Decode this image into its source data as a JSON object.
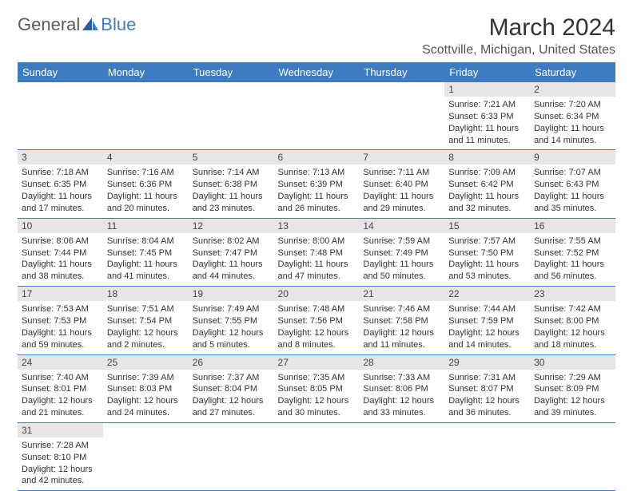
{
  "logo": {
    "text1": "General",
    "text2": "Blue"
  },
  "title": "March 2024",
  "location": "Scottville, Michigan, United States",
  "colors": {
    "header_bg": "#3d7cc0",
    "daynum_bg": "#e6e6e6",
    "border": "#3d7cc0"
  },
  "day_headers": [
    "Sunday",
    "Monday",
    "Tuesday",
    "Wednesday",
    "Thursday",
    "Friday",
    "Saturday"
  ],
  "weeks": [
    [
      null,
      null,
      null,
      null,
      null,
      {
        "n": "1",
        "sr": "7:21 AM",
        "ss": "6:33 PM",
        "dl": "11 hours and 11 minutes."
      },
      {
        "n": "2",
        "sr": "7:20 AM",
        "ss": "6:34 PM",
        "dl": "11 hours and 14 minutes."
      }
    ],
    [
      {
        "n": "3",
        "sr": "7:18 AM",
        "ss": "6:35 PM",
        "dl": "11 hours and 17 minutes."
      },
      {
        "n": "4",
        "sr": "7:16 AM",
        "ss": "6:36 PM",
        "dl": "11 hours and 20 minutes."
      },
      {
        "n": "5",
        "sr": "7:14 AM",
        "ss": "6:38 PM",
        "dl": "11 hours and 23 minutes."
      },
      {
        "n": "6",
        "sr": "7:13 AM",
        "ss": "6:39 PM",
        "dl": "11 hours and 26 minutes."
      },
      {
        "n": "7",
        "sr": "7:11 AM",
        "ss": "6:40 PM",
        "dl": "11 hours and 29 minutes."
      },
      {
        "n": "8",
        "sr": "7:09 AM",
        "ss": "6:42 PM",
        "dl": "11 hours and 32 minutes."
      },
      {
        "n": "9",
        "sr": "7:07 AM",
        "ss": "6:43 PM",
        "dl": "11 hours and 35 minutes."
      }
    ],
    [
      {
        "n": "10",
        "sr": "8:06 AM",
        "ss": "7:44 PM",
        "dl": "11 hours and 38 minutes."
      },
      {
        "n": "11",
        "sr": "8:04 AM",
        "ss": "7:45 PM",
        "dl": "11 hours and 41 minutes."
      },
      {
        "n": "12",
        "sr": "8:02 AM",
        "ss": "7:47 PM",
        "dl": "11 hours and 44 minutes."
      },
      {
        "n": "13",
        "sr": "8:00 AM",
        "ss": "7:48 PM",
        "dl": "11 hours and 47 minutes."
      },
      {
        "n": "14",
        "sr": "7:59 AM",
        "ss": "7:49 PM",
        "dl": "11 hours and 50 minutes."
      },
      {
        "n": "15",
        "sr": "7:57 AM",
        "ss": "7:50 PM",
        "dl": "11 hours and 53 minutes."
      },
      {
        "n": "16",
        "sr": "7:55 AM",
        "ss": "7:52 PM",
        "dl": "11 hours and 56 minutes."
      }
    ],
    [
      {
        "n": "17",
        "sr": "7:53 AM",
        "ss": "7:53 PM",
        "dl": "11 hours and 59 minutes."
      },
      {
        "n": "18",
        "sr": "7:51 AM",
        "ss": "7:54 PM",
        "dl": "12 hours and 2 minutes."
      },
      {
        "n": "19",
        "sr": "7:49 AM",
        "ss": "7:55 PM",
        "dl": "12 hours and 5 minutes."
      },
      {
        "n": "20",
        "sr": "7:48 AM",
        "ss": "7:56 PM",
        "dl": "12 hours and 8 minutes."
      },
      {
        "n": "21",
        "sr": "7:46 AM",
        "ss": "7:58 PM",
        "dl": "12 hours and 11 minutes."
      },
      {
        "n": "22",
        "sr": "7:44 AM",
        "ss": "7:59 PM",
        "dl": "12 hours and 14 minutes."
      },
      {
        "n": "23",
        "sr": "7:42 AM",
        "ss": "8:00 PM",
        "dl": "12 hours and 18 minutes."
      }
    ],
    [
      {
        "n": "24",
        "sr": "7:40 AM",
        "ss": "8:01 PM",
        "dl": "12 hours and 21 minutes."
      },
      {
        "n": "25",
        "sr": "7:39 AM",
        "ss": "8:03 PM",
        "dl": "12 hours and 24 minutes."
      },
      {
        "n": "26",
        "sr": "7:37 AM",
        "ss": "8:04 PM",
        "dl": "12 hours and 27 minutes."
      },
      {
        "n": "27",
        "sr": "7:35 AM",
        "ss": "8:05 PM",
        "dl": "12 hours and 30 minutes."
      },
      {
        "n": "28",
        "sr": "7:33 AM",
        "ss": "8:06 PM",
        "dl": "12 hours and 33 minutes."
      },
      {
        "n": "29",
        "sr": "7:31 AM",
        "ss": "8:07 PM",
        "dl": "12 hours and 36 minutes."
      },
      {
        "n": "30",
        "sr": "7:29 AM",
        "ss": "8:09 PM",
        "dl": "12 hours and 39 minutes."
      }
    ],
    [
      {
        "n": "31",
        "sr": "7:28 AM",
        "ss": "8:10 PM",
        "dl": "12 hours and 42 minutes."
      },
      null,
      null,
      null,
      null,
      null,
      null
    ]
  ],
  "labels": {
    "sunrise": "Sunrise: ",
    "sunset": "Sunset: ",
    "daylight": "Daylight: "
  }
}
